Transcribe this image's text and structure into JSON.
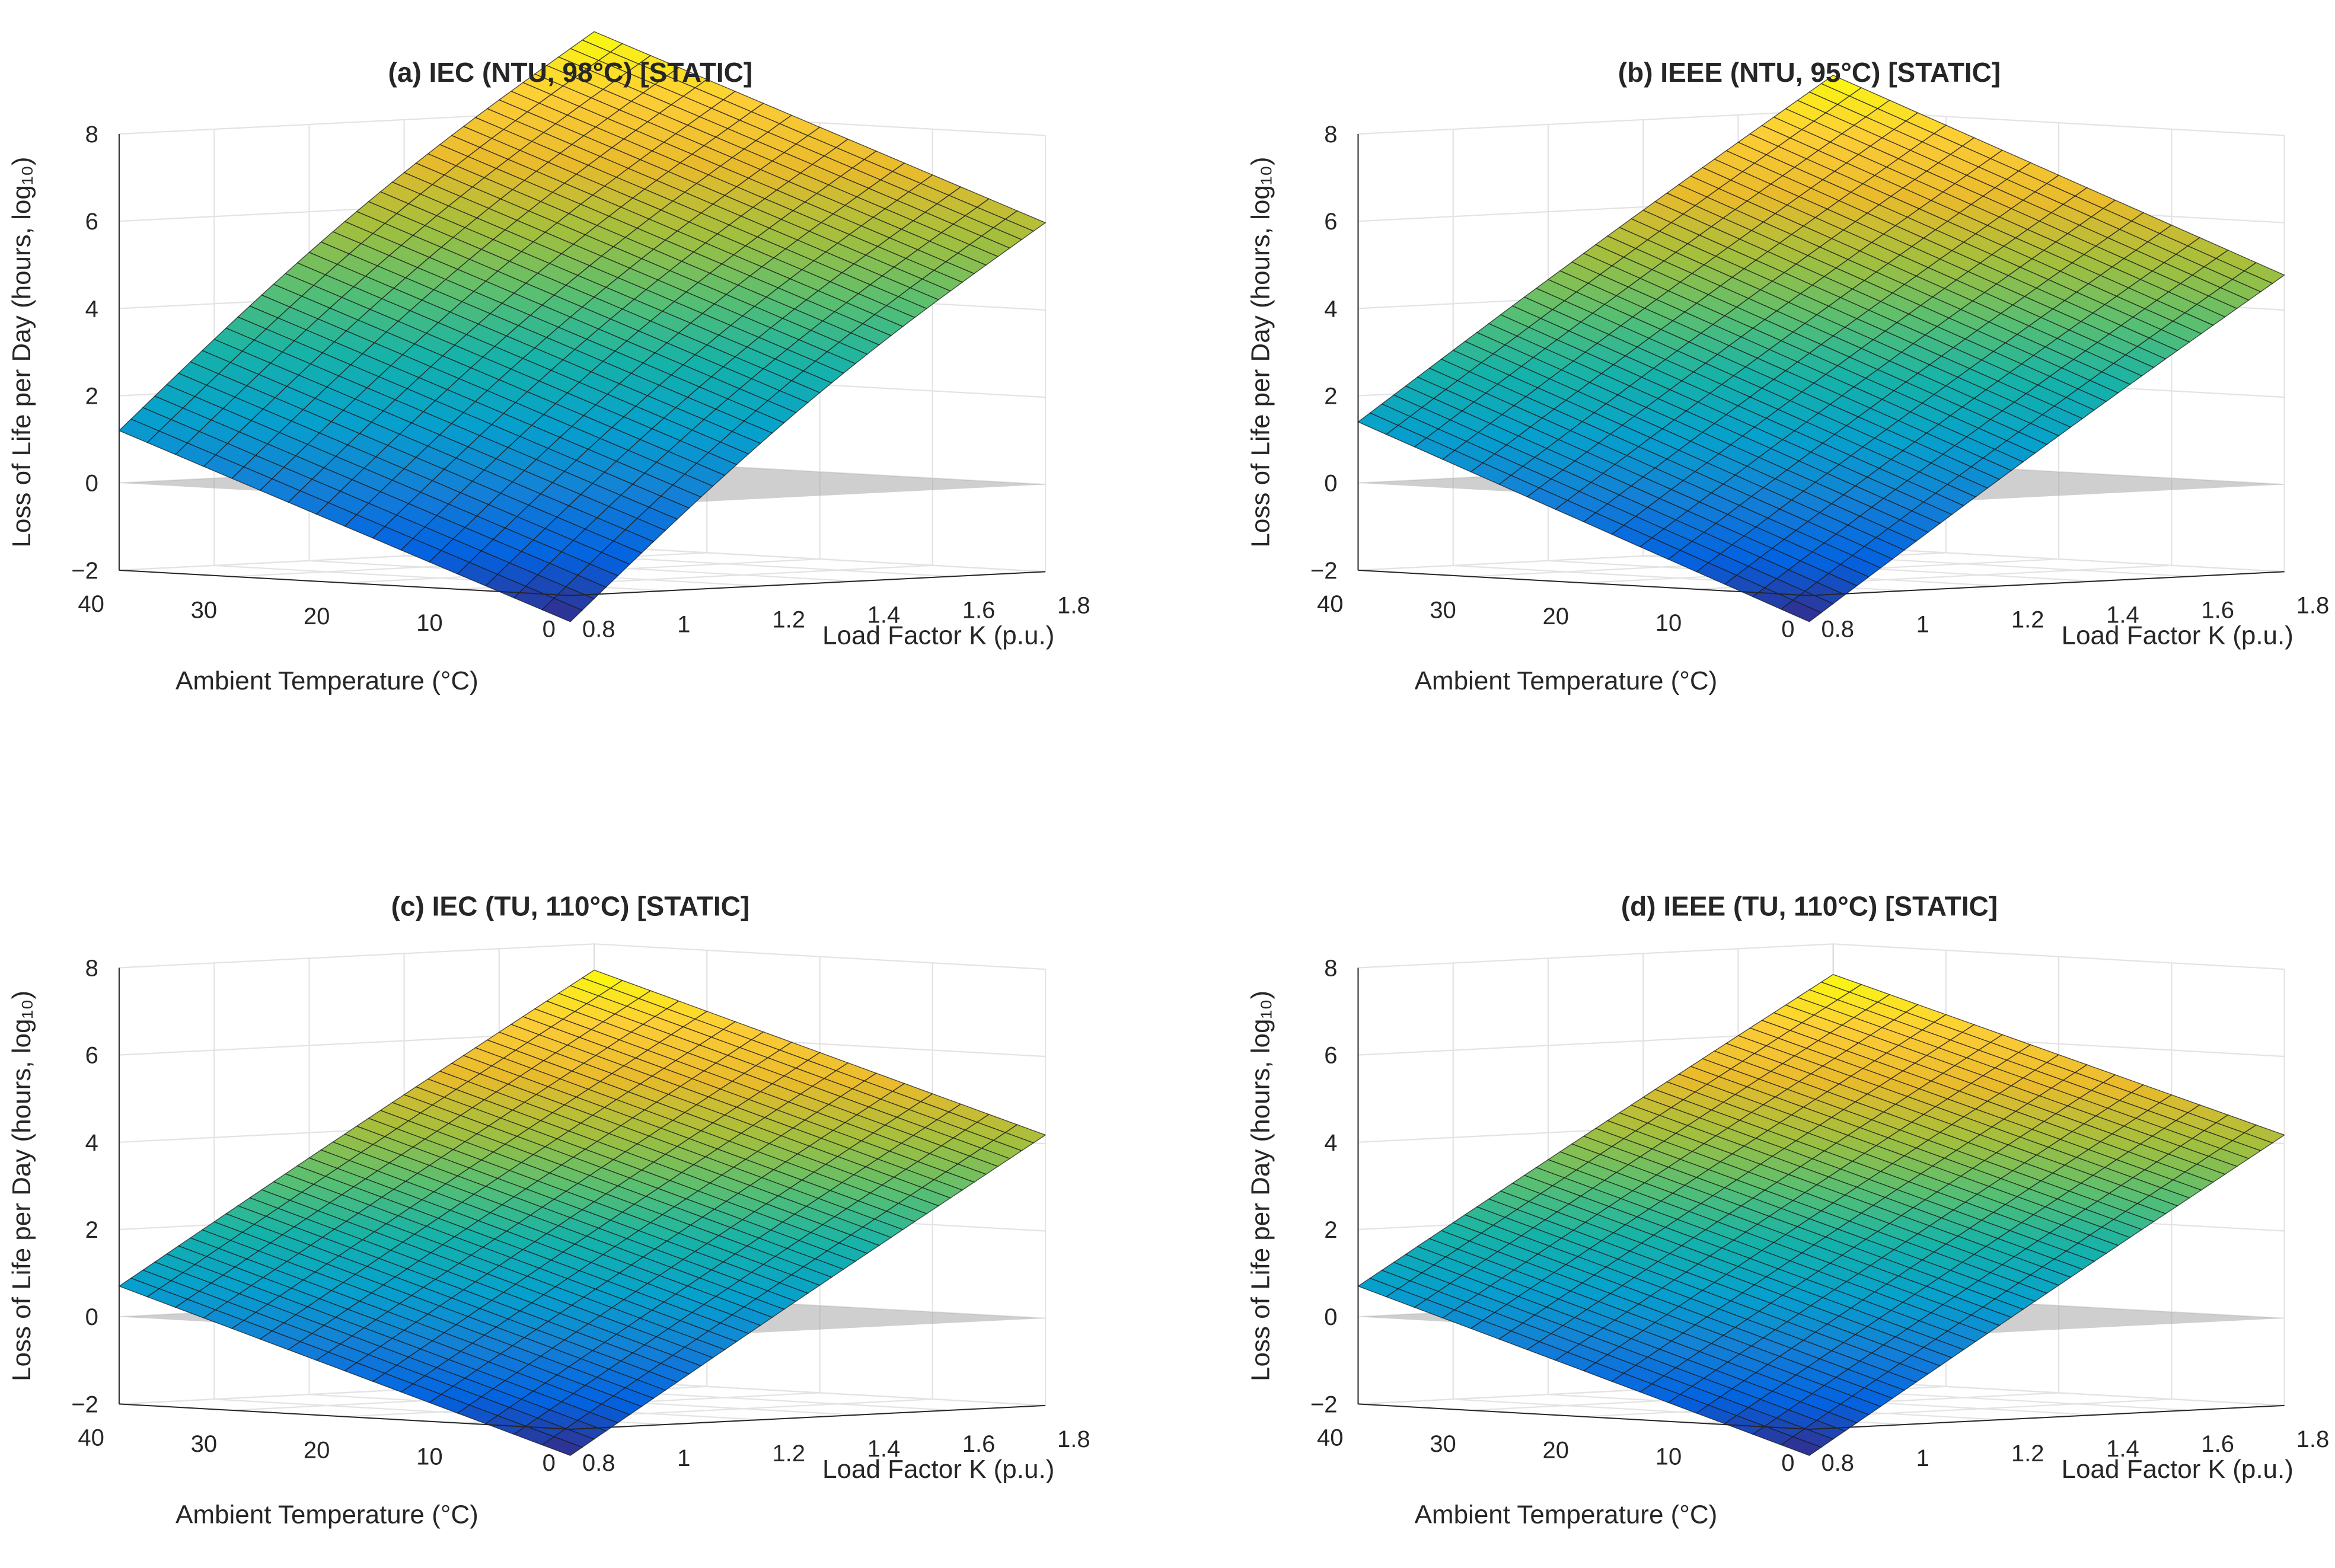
{
  "chart_data": [
    {
      "type": "surface",
      "title": "(a) IEC (NTU, 98°C) [STATIC]",
      "xlabel": "Load Factor K (p.u.)",
      "ylabel": "Ambient Temperature (°C)",
      "zlabel": "Loss of Life per Day (hours, log₁₀)",
      "xlim": [
        0.8,
        1.8
      ],
      "ylim": [
        0,
        40
      ],
      "zlim": [
        -2,
        8
      ],
      "xticks": [
        "0.8",
        "1",
        "1.2",
        "1.4",
        "1.6",
        "1.8"
      ],
      "yticks": [
        "0",
        "10",
        "20",
        "30",
        "40"
      ],
      "zticks": [
        "−2",
        "0",
        "2",
        "4",
        "6",
        "8"
      ],
      "reference_plane_z": 0,
      "grid": true,
      "surface_corners": {
        "K0.8_T0": -2.6,
        "K0.8_T40": 1.2,
        "K1.8_T0": 6.0,
        "K1.8_T40": 9.8
      },
      "curvature": 1.0
    },
    {
      "type": "surface",
      "title": "(b) IEEE (NTU, 95°C) [STATIC]",
      "xlabel": "Load Factor K (p.u.)",
      "ylabel": "Ambient Temperature (°C)",
      "zlabel": "Loss of Life per Day (hours, log₁₀)",
      "xlim": [
        0.8,
        1.8
      ],
      "ylim": [
        0,
        40
      ],
      "zlim": [
        -2,
        8
      ],
      "xticks": [
        "0.8",
        "1",
        "1.2",
        "1.4",
        "1.6",
        "1.8"
      ],
      "yticks": [
        "0",
        "10",
        "20",
        "30",
        "40"
      ],
      "zticks": [
        "−2",
        "0",
        "2",
        "4",
        "6",
        "8"
      ],
      "reference_plane_z": 0,
      "grid": true,
      "surface_corners": {
        "K0.8_T0": -2.6,
        "K0.8_T40": 1.4,
        "K1.8_T0": 4.8,
        "K1.8_T40": 8.8
      },
      "curvature": 0.2
    },
    {
      "type": "surface",
      "title": "(c) IEC (TU, 110°C) [STATIC]",
      "xlabel": "Load Factor K (p.u.)",
      "ylabel": "Ambient Temperature (°C)",
      "zlabel": "Loss of Life per Day (hours, log₁₀)",
      "xlim": [
        0.8,
        1.8
      ],
      "ylim": [
        0,
        40
      ],
      "zlim": [
        -2,
        8
      ],
      "xticks": [
        "0.8",
        "1",
        "1.2",
        "1.4",
        "1.6",
        "1.8"
      ],
      "yticks": [
        "0",
        "10",
        "20",
        "30",
        "40"
      ],
      "zticks": [
        "−2",
        "0",
        "2",
        "4",
        "6",
        "8"
      ],
      "reference_plane_z": 0,
      "grid": true,
      "surface_corners": {
        "K0.8_T0": -2.6,
        "K0.8_T40": 0.7,
        "K1.8_T0": 4.2,
        "K1.8_T40": 7.4
      },
      "curvature": 0.1
    },
    {
      "type": "surface",
      "title": "(d) IEEE (TU, 110°C) [STATIC]",
      "xlabel": "Load Factor K (p.u.)",
      "ylabel": "Ambient Temperature (°C)",
      "zlabel": "Loss of Life per Day (hours, log₁₀)",
      "xlim": [
        0.8,
        1.8
      ],
      "ylim": [
        0,
        40
      ],
      "zlim": [
        -2,
        8
      ],
      "xticks": [
        "0.8",
        "1",
        "1.2",
        "1.4",
        "1.6",
        "1.8"
      ],
      "yticks": [
        "0",
        "10",
        "20",
        "30",
        "40"
      ],
      "zticks": [
        "−2",
        "0",
        "2",
        "4",
        "6",
        "8"
      ],
      "reference_plane_z": 0,
      "grid": true,
      "surface_corners": {
        "K0.8_T0": -2.6,
        "K0.8_T40": 0.7,
        "K1.8_T0": 4.2,
        "K1.8_T40": 7.3
      },
      "curvature": 0.1
    }
  ]
}
